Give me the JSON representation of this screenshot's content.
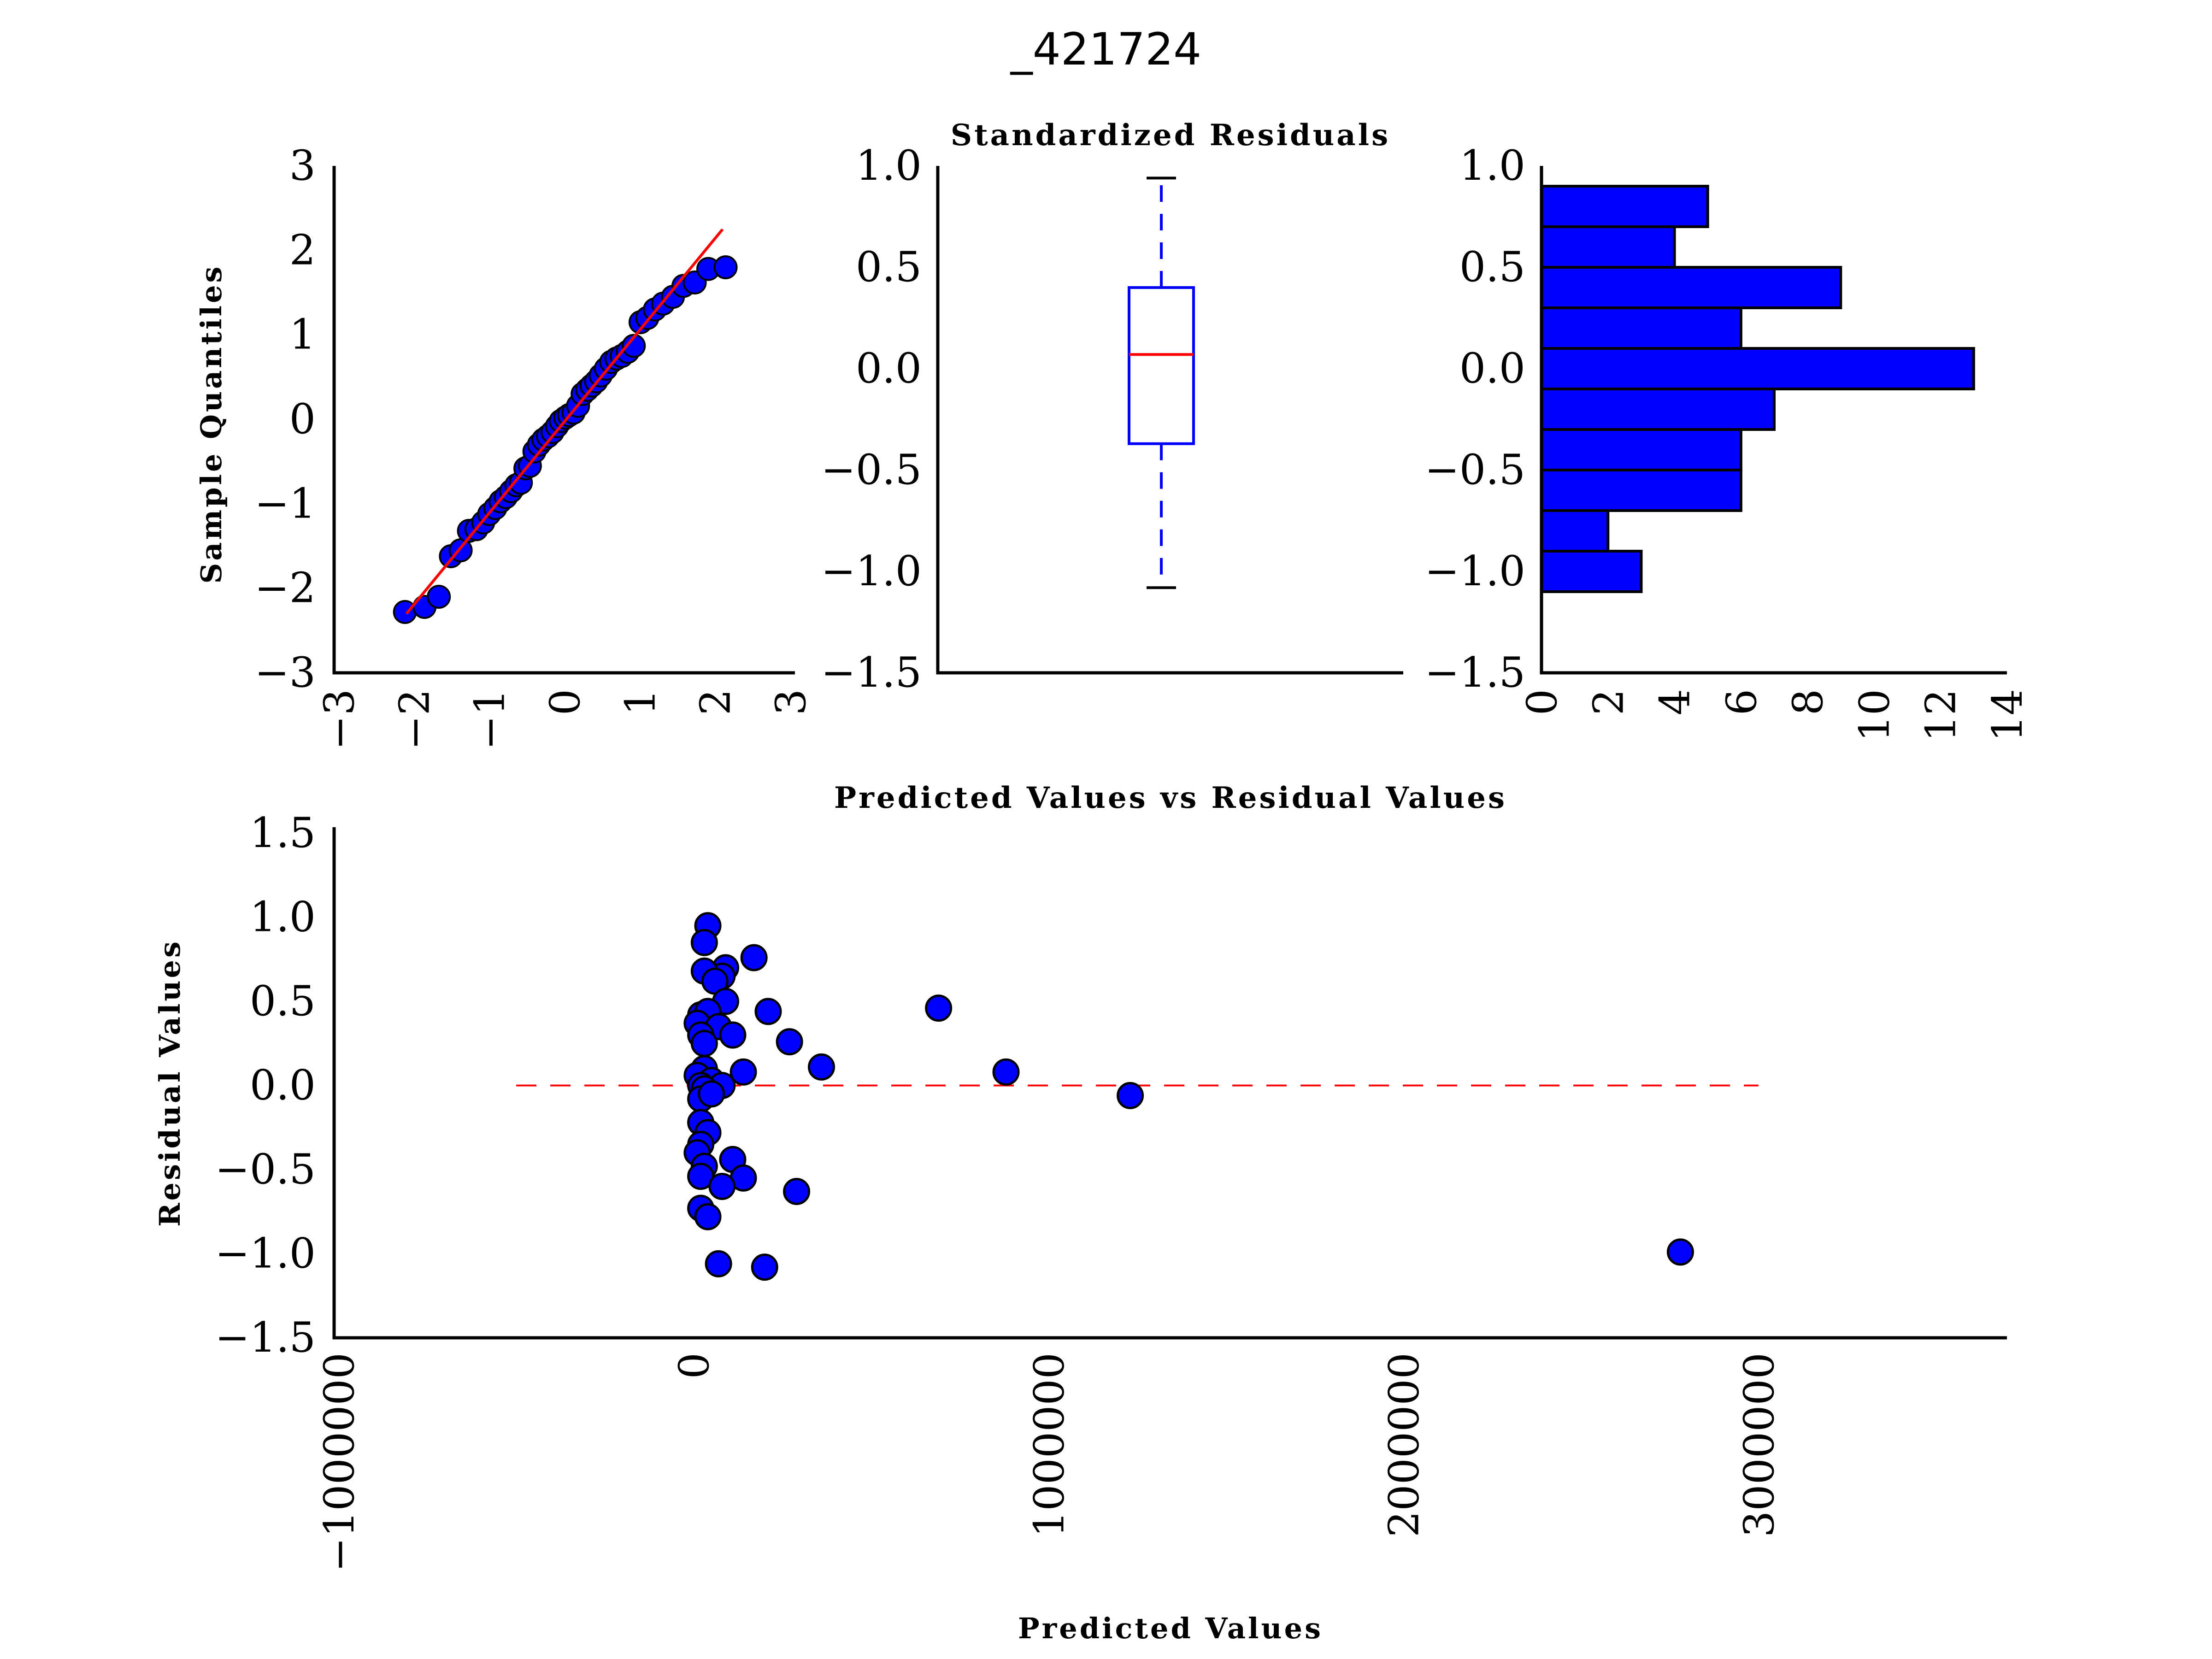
{
  "figure_title": "_421724",
  "colors": {
    "marker": "#0000ff",
    "marker_edge": "#000000",
    "fit_line": "#ff0000",
    "median": "#ff0000",
    "zero_line": "#ff0000"
  },
  "chart_data": [
    {
      "type": "scatter",
      "id": "qq",
      "title": "",
      "xlabel": "",
      "ylabel": "Sample Quantiles",
      "xlim": [
        -3,
        3
      ],
      "ylim": [
        -3,
        3
      ],
      "xticks": [
        "−3",
        "−2",
        "−1",
        "0",
        "1",
        "2",
        "3"
      ],
      "yticks": [
        "3",
        "2",
        "1",
        "0",
        "−1",
        "−2",
        "−3"
      ],
      "fit_line": [
        [
          -2.1,
          -2.3
        ],
        [
          2.1,
          2.25
        ]
      ],
      "points": [
        [
          -2.12,
          -2.28
        ],
        [
          -1.86,
          -2.22
        ],
        [
          -1.67,
          -2.1
        ],
        [
          -1.51,
          -1.62
        ],
        [
          -1.38,
          -1.55
        ],
        [
          -1.27,
          -1.32
        ],
        [
          -1.17,
          -1.3
        ],
        [
          -1.08,
          -1.22
        ],
        [
          -1.0,
          -1.12
        ],
        [
          -0.92,
          -1.05
        ],
        [
          -0.85,
          -0.97
        ],
        [
          -0.78,
          -0.92
        ],
        [
          -0.71,
          -0.85
        ],
        [
          -0.64,
          -0.78
        ],
        [
          -0.58,
          -0.75
        ],
        [
          -0.52,
          -0.58
        ],
        [
          -0.46,
          -0.55
        ],
        [
          -0.4,
          -0.38
        ],
        [
          -0.34,
          -0.3
        ],
        [
          -0.28,
          -0.24
        ],
        [
          -0.22,
          -0.2
        ],
        [
          -0.16,
          -0.15
        ],
        [
          -0.1,
          -0.08
        ],
        [
          -0.05,
          -0.02
        ],
        [
          0.01,
          0.02
        ],
        [
          0.06,
          0.05
        ],
        [
          0.12,
          0.08
        ],
        [
          0.18,
          0.16
        ],
        [
          0.24,
          0.3
        ],
        [
          0.3,
          0.35
        ],
        [
          0.36,
          0.4
        ],
        [
          0.42,
          0.45
        ],
        [
          0.48,
          0.52
        ],
        [
          0.55,
          0.6
        ],
        [
          0.62,
          0.68
        ],
        [
          0.69,
          0.72
        ],
        [
          0.76,
          0.75
        ],
        [
          0.84,
          0.8
        ],
        [
          0.92,
          0.87
        ],
        [
          1.01,
          1.15
        ],
        [
          1.1,
          1.2
        ],
        [
          1.2,
          1.3
        ],
        [
          1.31,
          1.37
        ],
        [
          1.44,
          1.45
        ],
        [
          1.58,
          1.58
        ],
        [
          1.73,
          1.62
        ],
        [
          1.91,
          1.78
        ],
        [
          2.14,
          1.8
        ]
      ]
    },
    {
      "type": "box",
      "id": "box",
      "title": "Standardized Residuals",
      "ylim": [
        -1.5,
        1.0
      ],
      "yticks": [
        "1.0",
        "0.5",
        "0.0",
        "−0.5",
        "−1.0",
        "−1.5"
      ],
      "whisker_low": -1.08,
      "q1": -0.37,
      "median": 0.07,
      "q3": 0.4,
      "whisker_high": 0.94
    },
    {
      "type": "bar",
      "id": "hist",
      "orientation": "horizontal",
      "xlim": [
        0,
        14
      ],
      "ylim": [
        -1.5,
        1.0
      ],
      "xticks": [
        "0",
        "2",
        "4",
        "6",
        "8",
        "10",
        "12",
        "14"
      ],
      "yticks": [
        "1.0",
        "0.5",
        "0.0",
        "−0.5",
        "−1.0",
        "−1.5"
      ],
      "bin_edges": [
        -1.1,
        -0.9,
        -0.7,
        -0.5,
        -0.3,
        -0.1,
        0.1,
        0.3,
        0.5,
        0.7,
        0.9
      ],
      "counts": [
        3,
        2,
        6,
        6,
        7,
        13,
        6,
        9,
        4,
        5
      ]
    },
    {
      "type": "scatter",
      "id": "resid",
      "title": "Predicted Values vs Residual Values",
      "xlabel": "Predicted Values",
      "ylabel": "Residual Values",
      "xlim": [
        -1000000,
        3700000
      ],
      "ylim": [
        -1.5,
        1.5
      ],
      "xticks": [
        "−1000000",
        "0",
        "1000000",
        "2000000",
        "3000000"
      ],
      "yticks": [
        "1.5",
        "1.0",
        "0.5",
        "0.0",
        "−0.5",
        "−1.0",
        "−1.5"
      ],
      "zero_line_range": [
        -500000,
        3000000
      ],
      "points": [
        [
          40000,
          0.95
        ],
        [
          30000,
          0.85
        ],
        [
          90000,
          0.7
        ],
        [
          80000,
          0.65
        ],
        [
          170000,
          0.76
        ],
        [
          30000,
          0.68
        ],
        [
          60000,
          0.62
        ],
        [
          90000,
          0.5
        ],
        [
          210000,
          0.44
        ],
        [
          20000,
          0.42
        ],
        [
          40000,
          0.44
        ],
        [
          10000,
          0.37
        ],
        [
          70000,
          0.35
        ],
        [
          110000,
          0.3
        ],
        [
          20000,
          0.3
        ],
        [
          30000,
          0.25
        ],
        [
          270000,
          0.26
        ],
        [
          360000,
          0.11
        ],
        [
          140000,
          0.08
        ],
        [
          30000,
          0.1
        ],
        [
          10000,
          0.06
        ],
        [
          50000,
          0.03
        ],
        [
          20000,
          0.0
        ],
        [
          80000,
          0.0
        ],
        [
          30000,
          -0.02
        ],
        [
          20000,
          -0.08
        ],
        [
          50000,
          -0.05
        ],
        [
          690000,
          0.46
        ],
        [
          880000,
          0.08
        ],
        [
          1230000,
          -0.06
        ],
        [
          20000,
          -0.22
        ],
        [
          40000,
          -0.28
        ],
        [
          20000,
          -0.35
        ],
        [
          110000,
          -0.44
        ],
        [
          10000,
          -0.4
        ],
        [
          30000,
          -0.48
        ],
        [
          140000,
          -0.55
        ],
        [
          20000,
          -0.54
        ],
        [
          80000,
          -0.6
        ],
        [
          290000,
          -0.63
        ],
        [
          20000,
          -0.73
        ],
        [
          40000,
          -0.78
        ],
        [
          70000,
          -1.06
        ],
        [
          200000,
          -1.08
        ],
        [
          2780000,
          -0.99
        ]
      ]
    }
  ]
}
